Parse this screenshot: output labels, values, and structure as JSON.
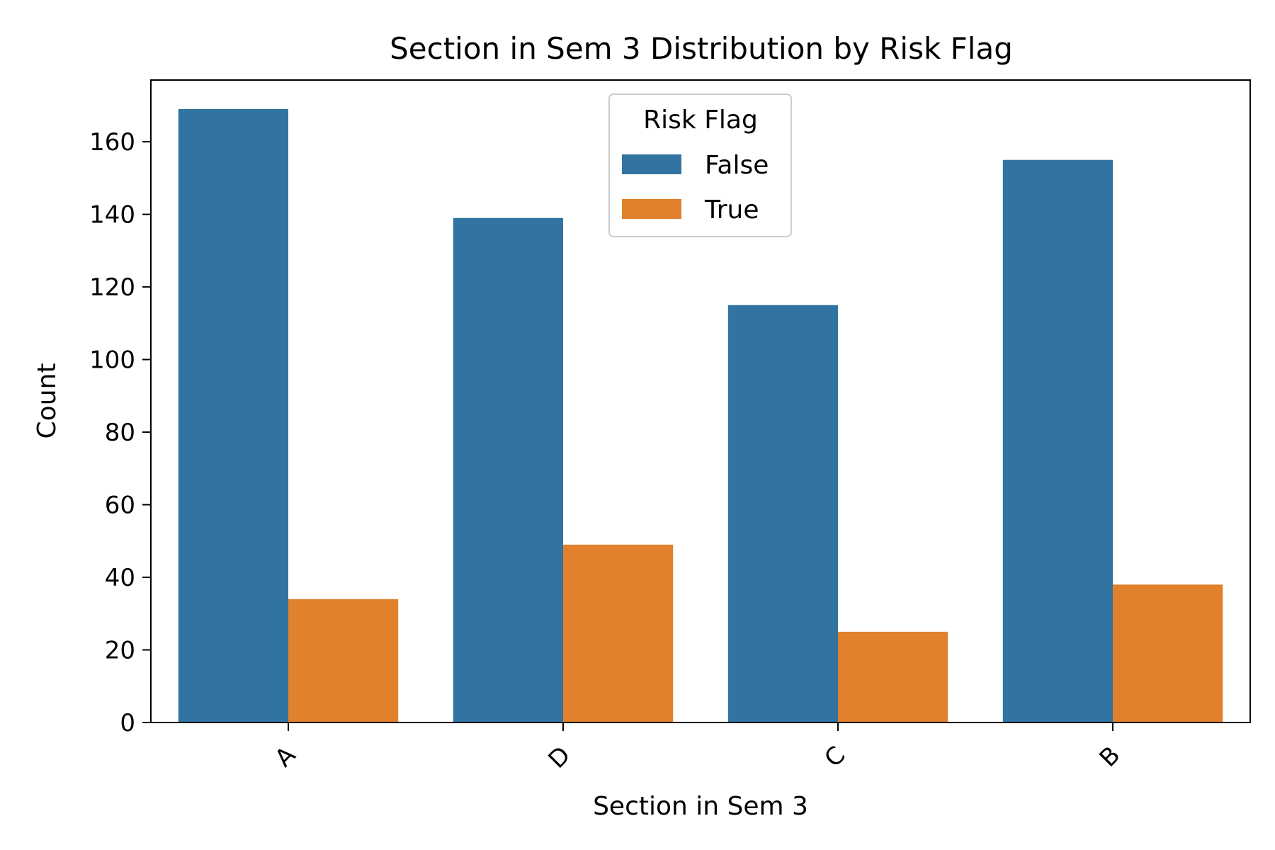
{
  "chart_data": {
    "type": "bar",
    "title": "Section in Sem 3 Distribution by Risk Flag",
    "xlabel": "Section in Sem 3",
    "ylabel": "Count",
    "categories": [
      "A",
      "D",
      "C",
      "B"
    ],
    "series": [
      {
        "name": "False",
        "color": "#3274a1",
        "values": [
          169,
          139,
          115,
          155
        ]
      },
      {
        "name": "True",
        "color": "#e1812c",
        "values": [
          34,
          49,
          25,
          38
        ]
      }
    ],
    "ylim": [
      0,
      177
    ],
    "yticks": [
      0,
      20,
      40,
      60,
      80,
      100,
      120,
      140,
      160
    ],
    "grid": false,
    "legend": {
      "title": "Risk Flag",
      "placement": "upper-center"
    }
  }
}
